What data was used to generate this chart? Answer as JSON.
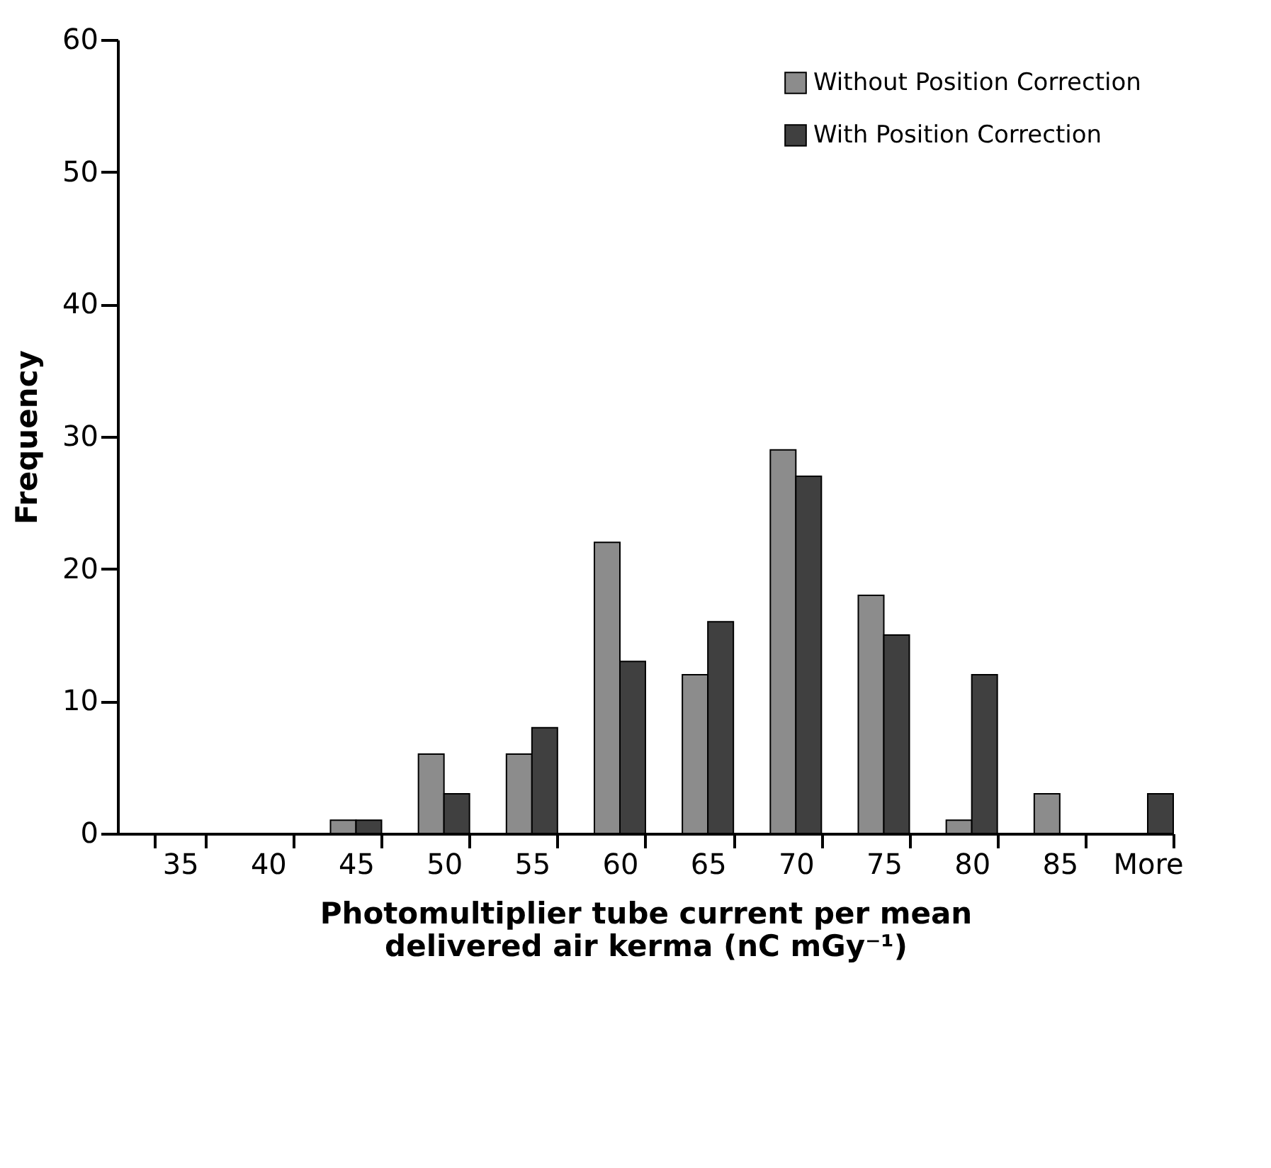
{
  "chart_data": {
    "type": "bar",
    "xlabel": "Photomultiplier  tube current per mean delivered air kerma (nC mGy⁻¹)",
    "ylabel": "Frequency",
    "categories": [
      "35",
      "40",
      "45",
      "50",
      "55",
      "60",
      "65",
      "70",
      "75",
      "80",
      "85",
      "More"
    ],
    "series": [
      {
        "name": "Without Position Correction",
        "color": "#8c8c8c",
        "values": [
          0,
          0,
          1,
          6,
          6,
          22,
          12,
          29,
          18,
          1,
          3,
          0
        ]
      },
      {
        "name": "With Position Correction",
        "color": "#404040",
        "values": [
          0,
          0,
          1,
          3,
          8,
          13,
          16,
          27,
          15,
          12,
          0,
          3
        ]
      }
    ],
    "ylim": [
      0,
      60
    ],
    "yticks": [
      0,
      10,
      20,
      30,
      40,
      50,
      60
    ],
    "legend": "top right"
  }
}
